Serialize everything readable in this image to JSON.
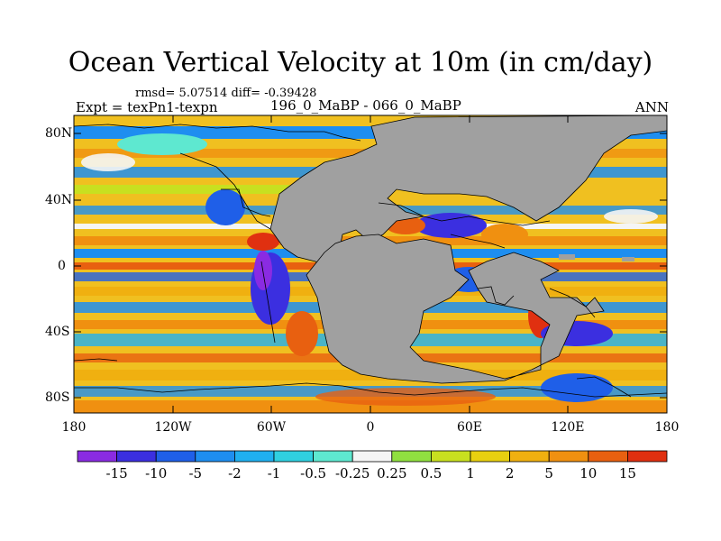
{
  "title": "Ocean Vertical Velocity at 10m (in cm/day)",
  "stats": "rmsd= 5.07514 diff= -0.39428",
  "experiment": "Expt = texPn1-texpn",
  "period": "196_0_MaBP - 066_0_MaBP",
  "season": "ANN",
  "map": {
    "land_color": "#a0a0a0",
    "lat_labels": [
      "80N",
      "40N",
      "0",
      "40S",
      "80S"
    ],
    "lon_labels": [
      "180",
      "120W",
      "60W",
      "0",
      "60E",
      "120E",
      "180"
    ]
  },
  "colorbar": {
    "labels": [
      "-15",
      "-10",
      "-5",
      "-2",
      "-1",
      "-0.5",
      "-0.25",
      "0.25",
      "0.5",
      "1",
      "2",
      "5",
      "10",
      "15"
    ],
    "colors": [
      "#8a2be2",
      "#3b2fe0",
      "#1f5fe8",
      "#1e8ef0",
      "#20b0f0",
      "#30d0e0",
      "#5ee8d0",
      "#f5f5f5",
      "#90e040",
      "#c8e020",
      "#e8d010",
      "#f0b010",
      "#f09010",
      "#e86010",
      "#e03010"
    ]
  }
}
